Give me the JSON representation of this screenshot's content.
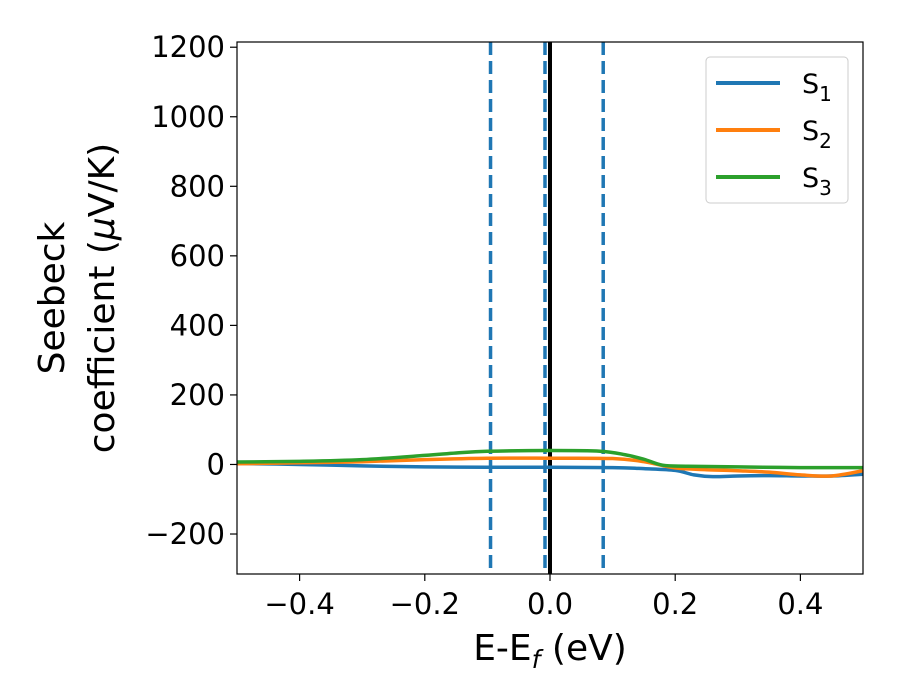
{
  "chart_data": {
    "type": "line",
    "xlabel": {
      "main": "E-E",
      "sub": "f",
      "unit": " (eV)"
    },
    "ylabel": {
      "line1": "Seebeck",
      "line2_prefix": "coefficient  (",
      "mu": "μ",
      "line2_suffix": "V/K)"
    },
    "xlim": [
      -0.5,
      0.5
    ],
    "ylim": [
      -315,
      1215
    ],
    "xticks": [
      -0.4,
      -0.2,
      0.0,
      0.2,
      0.4
    ],
    "xtick_labels": [
      "−0.4",
      "−0.2",
      "0.0",
      "0.2",
      "0.4"
    ],
    "yticks": [
      -200,
      0,
      200,
      400,
      600,
      800,
      1000,
      1200
    ],
    "ytick_labels": [
      "−200",
      "0",
      "200",
      "400",
      "600",
      "800",
      "1000",
      "1200"
    ],
    "grid": false,
    "legend_position": "top-right",
    "series": [
      {
        "name": "S",
        "sub": "1",
        "color": "#1f77b4",
        "x": [
          -0.5,
          -0.4,
          -0.3,
          -0.2,
          -0.1,
          0.0,
          0.1,
          0.15,
          0.2,
          0.23,
          0.26,
          0.3,
          0.35,
          0.4,
          0.45,
          0.5
        ],
        "y": [
          3,
          0,
          -4,
          -7,
          -8,
          -8,
          -9,
          -12,
          -17,
          -30,
          -35,
          -33,
          -32,
          -33,
          -33,
          -28
        ]
      },
      {
        "name": "S",
        "sub": "2",
        "color": "#ff7f0e",
        "x": [
          -0.5,
          -0.4,
          -0.3,
          -0.2,
          -0.1,
          0.0,
          0.1,
          0.15,
          0.2,
          0.25,
          0.3,
          0.35,
          0.4,
          0.45,
          0.5
        ],
        "y": [
          2,
          5,
          8,
          14,
          18,
          18,
          17,
          8,
          -10,
          -15,
          -18,
          -22,
          -30,
          -33,
          -18
        ]
      },
      {
        "name": "S",
        "sub": "3",
        "color": "#2ca02c",
        "x": [
          -0.5,
          -0.4,
          -0.3,
          -0.2,
          -0.15,
          -0.1,
          0.0,
          0.08,
          0.12,
          0.15,
          0.18,
          0.22,
          0.3,
          0.4,
          0.5
        ],
        "y": [
          7,
          9,
          14,
          26,
          33,
          38,
          40,
          38,
          28,
          15,
          -2,
          -5,
          -7,
          -9,
          -9
        ]
      }
    ],
    "vlines": [
      {
        "x": -0.095,
        "style": "dashed",
        "color": "#1f77b4"
      },
      {
        "x": -0.008,
        "style": "dashed",
        "color": "#1f77b4"
      },
      {
        "x": 0.085,
        "style": "dashed",
        "color": "#1f77b4"
      },
      {
        "x": 0.0,
        "style": "solid",
        "color": "#000000"
      }
    ]
  }
}
